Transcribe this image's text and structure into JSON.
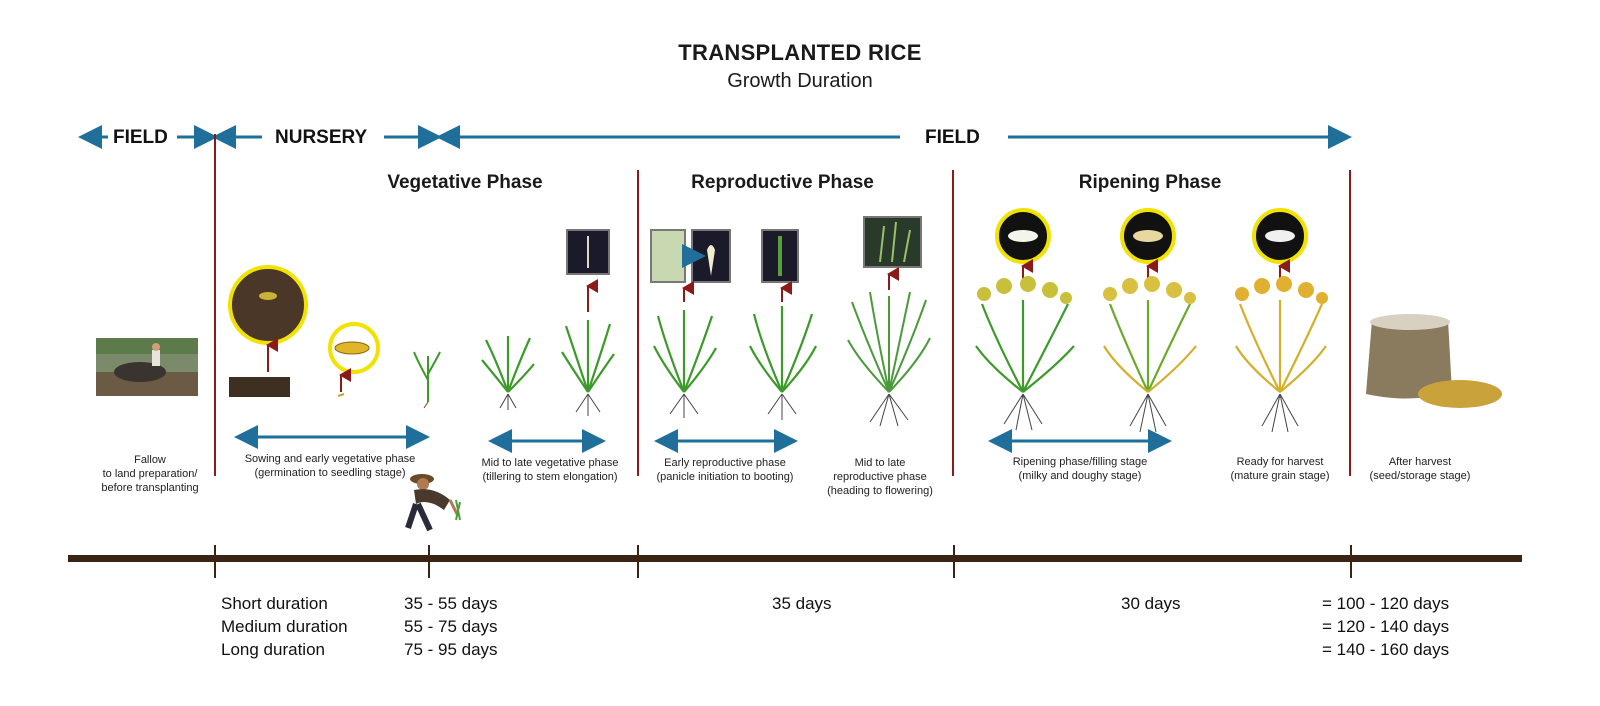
{
  "title": "TRANSPLANTED RICE",
  "subtitle": "Growth Duration",
  "zones": {
    "field_left": "FIELD",
    "nursery": "NURSERY",
    "field_main": "FIELD"
  },
  "phases": {
    "vegetative": "Vegetative Phase",
    "reproductive": "Reproductive Phase",
    "ripening": "Ripening Phase"
  },
  "stages": [
    {
      "line1": "Fallow",
      "line2": "to land preparation/",
      "line3": "before transplanting"
    },
    {
      "line1": "Sowing and early vegetative phase",
      "line2": "(germination to seedling stage)",
      "line3": ""
    },
    {
      "line1": "Mid to late vegetative phase",
      "line2": "(tillering to stem elongation)",
      "line3": ""
    },
    {
      "line1": "Early reproductive phase",
      "line2": "(panicle initiation to booting)",
      "line3": ""
    },
    {
      "line1": "Mid to late",
      "line2": "reproductive phase",
      "line3": "(heading to flowering)"
    },
    {
      "line1": "Ripening phase/filling stage",
      "line2": "(milky and doughy stage)",
      "line3": ""
    },
    {
      "line1": "Ready for harvest",
      "line2": "(mature grain stage)",
      "line3": ""
    },
    {
      "line1": "After harvest",
      "line2": "(seed/storage stage)",
      "line3": ""
    }
  ],
  "durations": {
    "labels": [
      "Short duration",
      "Medium duration",
      "Long duration"
    ],
    "vegetative": [
      "35 - 55 days",
      "55 - 75 days",
      "75 - 95 days"
    ],
    "reproductive": "35 days",
    "ripening": "30 days",
    "totals": [
      "= 100 - 120 days",
      "= 120 - 140 days",
      "= 140 - 160 days"
    ]
  },
  "colors": {
    "arrow_blue": "#1f6f9a",
    "divider_red": "#8b1a1a",
    "timeline_brown": "#3b2414",
    "plant_green": "#3c9a2a",
    "mature_yellow": "#d4b02a",
    "highlight_yellow": "#f2e200"
  },
  "icons": [
    "water-buffalo-icon",
    "soil-seed-icon",
    "rice-seed-icon",
    "seedling-icon",
    "rice-plant-icon",
    "farmer-transplanting-icon",
    "rice-grain-icon",
    "grain-sack-icon"
  ]
}
